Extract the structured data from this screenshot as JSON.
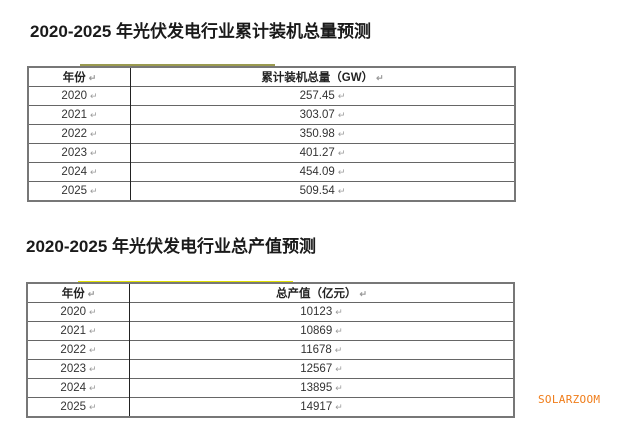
{
  "table1": {
    "title": "2020-2025 年光伏发电行业累计装机总量预测",
    "headers": [
      "年份",
      "累计装机总量（GW）"
    ],
    "rows": [
      [
        "2020",
        "257.45"
      ],
      [
        "2021",
        "303.07"
      ],
      [
        "2022",
        "350.98"
      ],
      [
        "2023",
        "401.27"
      ],
      [
        "2024",
        "454.09"
      ],
      [
        "2025",
        "509.54"
      ]
    ]
  },
  "table2": {
    "title": "2020-2025 年光伏发电行业总产值预测",
    "headers": [
      "年份",
      "总产值（亿元）"
    ],
    "rows": [
      [
        "2020",
        "10123"
      ],
      [
        "2021",
        "10869"
      ],
      [
        "2022",
        "11678"
      ],
      [
        "2023",
        "12567"
      ],
      [
        "2024",
        "13895"
      ],
      [
        "2025",
        "14917"
      ]
    ]
  },
  "watermark": "SOLARZOOM",
  "paragraph_mark": "↵"
}
